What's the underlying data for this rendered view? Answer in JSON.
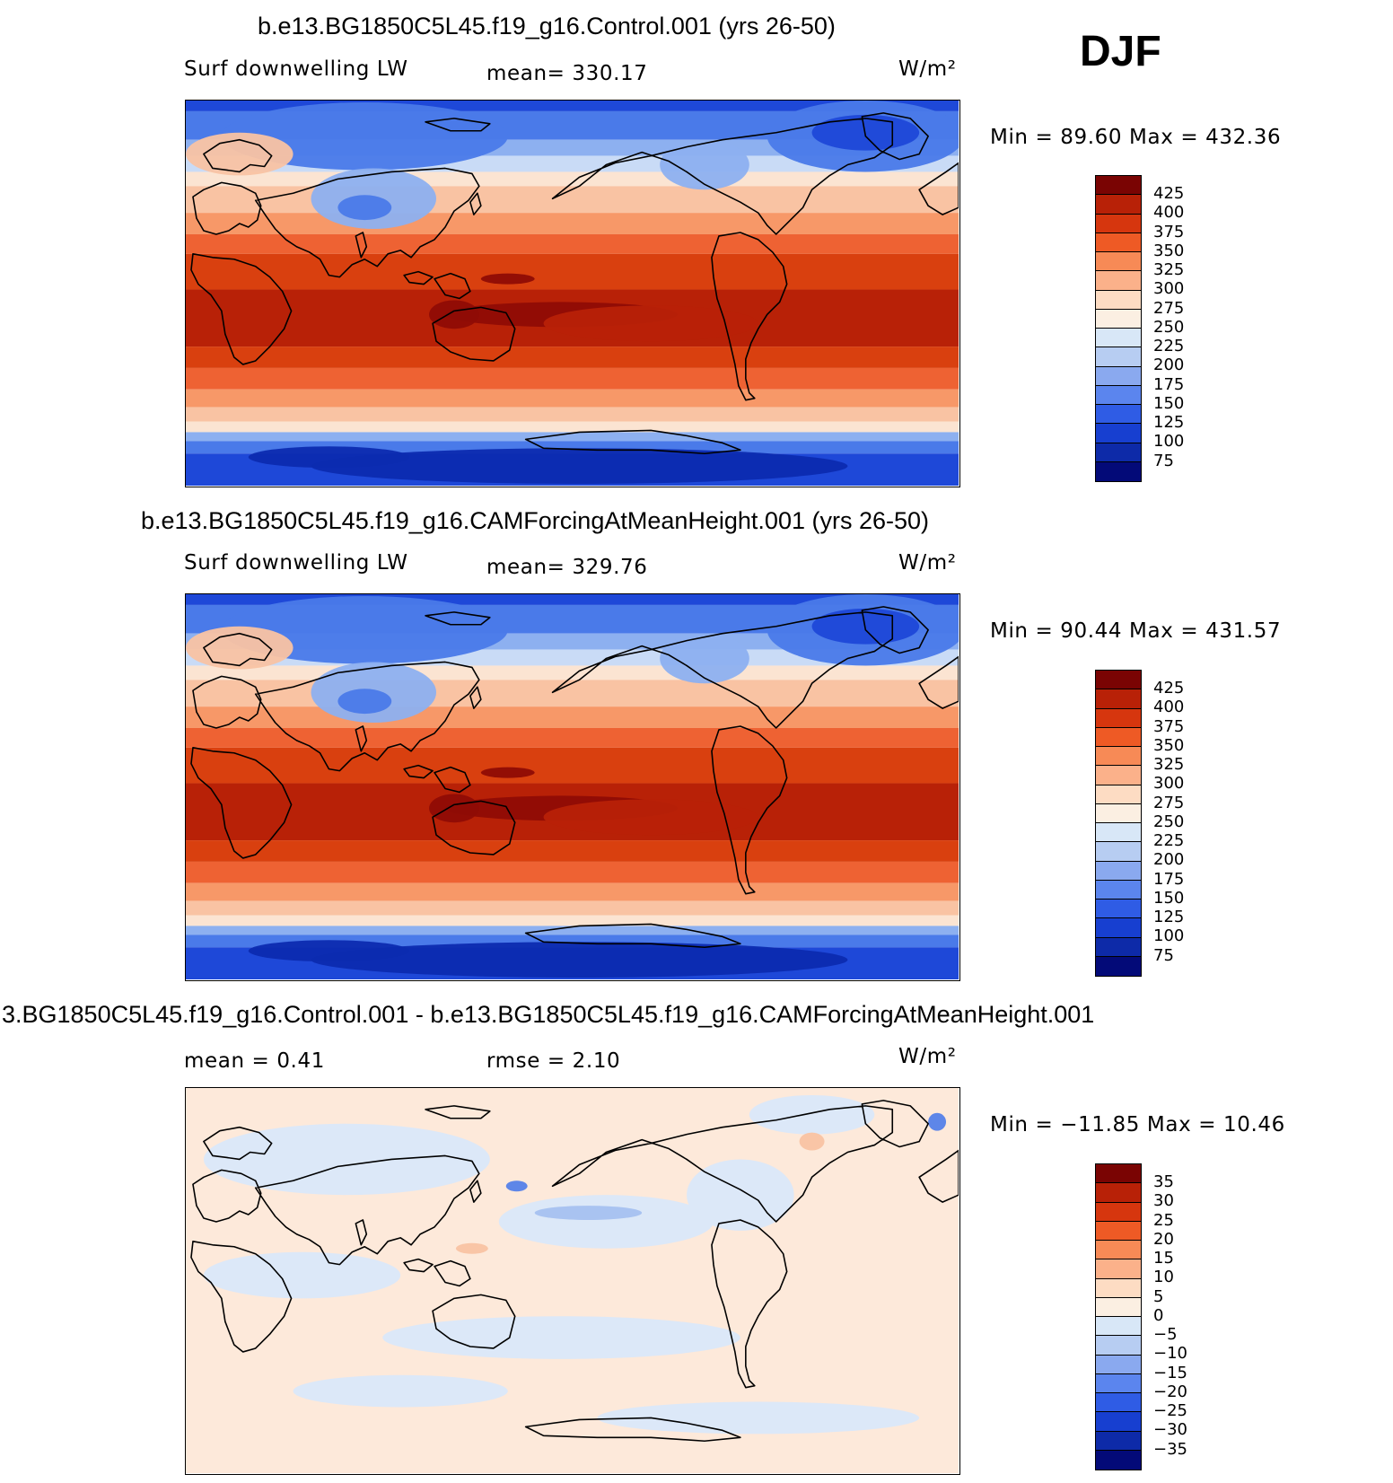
{
  "season": "DJF",
  "panels": [
    {
      "title": "b.e13.BG1850C5L45.f19_g16.Control.001 (yrs 26-50)",
      "left_label": "Surf downwelling LW",
      "mid_label": "mean= 330.17",
      "units": "W/m²",
      "minmax": "Min =   89.60  Max  =  432.36",
      "field_type": "absolute",
      "colorbar_labels": [
        "425",
        "400",
        "375",
        "350",
        "325",
        "300",
        "275",
        "250",
        "225",
        "200",
        "175",
        "150",
        "125",
        "100",
        "75"
      ]
    },
    {
      "title": "b.e13.BG1850C5L45.f19_g16.CAMForcingAtMeanHeight.001 (yrs 26-50)",
      "left_label": "Surf downwelling LW",
      "mid_label": "mean= 329.76",
      "units": "W/m²",
      "minmax": "Min =   90.44  Max  =  431.57",
      "field_type": "absolute",
      "colorbar_labels": [
        "425",
        "400",
        "375",
        "350",
        "325",
        "300",
        "275",
        "250",
        "225",
        "200",
        "175",
        "150",
        "125",
        "100",
        "75"
      ]
    },
    {
      "title": "3.BG1850C5L45.f19_g16.Control.001 - b.e13.BG1850C5L45.f19_g16.CAMForcingAtMeanHeight.001",
      "left_label": "mean =     0.41",
      "mid_label": "rmse =     2.10",
      "units": "W/m²",
      "minmax": "Min  = −11.85  Max  =    10.46",
      "field_type": "difference",
      "colorbar_labels": [
        "35",
        "30",
        "25",
        "20",
        "15",
        "10",
        "5",
        "0",
        "−5",
        "−10",
        "−15",
        "−20",
        "−25",
        "−30",
        "−35"
      ]
    }
  ],
  "colorbar_colors": [
    "#7a0403",
    "#b82107",
    "#d6360e",
    "#ee5a25",
    "#f78a56",
    "#fbb18a",
    "#fddcc3",
    "#fbefe2",
    "#d8e7f7",
    "#b7cdf2",
    "#8aa9ef",
    "#5b85ee",
    "#2f5ce5",
    "#173fd0",
    "#0d2aa8",
    "#030a78"
  ],
  "colors": {
    "absolute": {
      "polar_deep": "#1e48d8",
      "polar_darkest": "#0c2bb0",
      "polar": "#4a7ae9",
      "polar_light": "#8db0f0",
      "cool": "#c9dbf6",
      "neutral": "#fbe4d2",
      "mild": "#f9c3a3",
      "warm": "#f79868",
      "hot": "#ee6233",
      "hotter": "#d9400f",
      "hottest": "#b82107",
      "max": "#8f0c05"
    },
    "difference": {
      "base": "#fde9da",
      "cool": "#dce8f8",
      "cooler": "#a9c3f1",
      "coolest": "#5e86e8",
      "warm": "#f9c5a6"
    }
  }
}
